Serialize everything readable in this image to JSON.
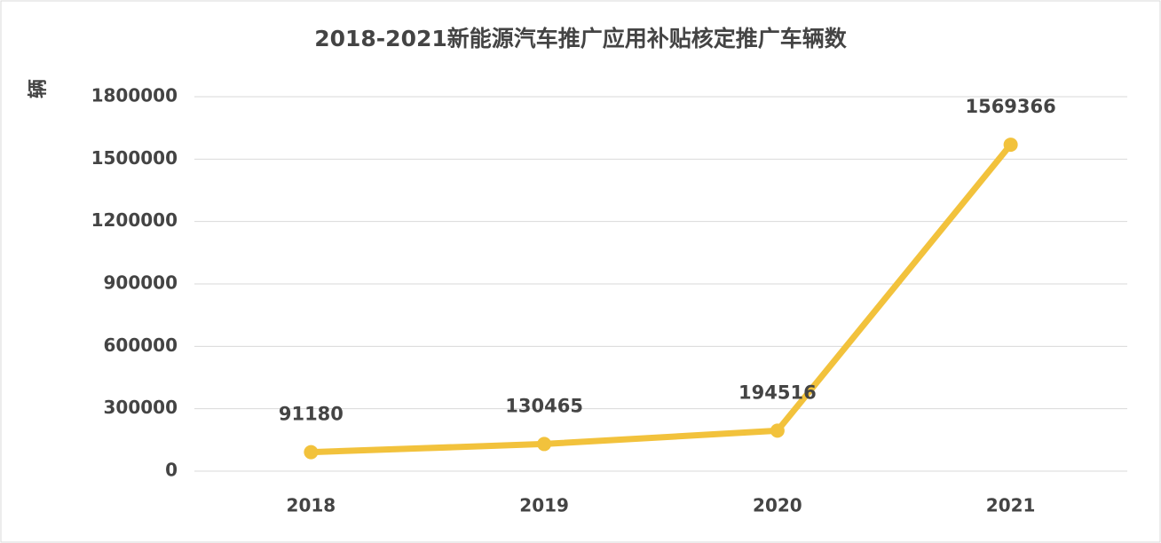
{
  "chart_data": {
    "type": "line",
    "title": "2018-2021新能源汽车推广应用补贴核定推广车辆数",
    "y_label": "辆",
    "categories": [
      "2018",
      "2019",
      "2020",
      "2021"
    ],
    "values": [
      91180,
      130465,
      194516,
      1569366
    ],
    "color": "#f2c23c",
    "ylim": [
      0,
      1800000
    ],
    "yticks": [
      0,
      300000,
      600000,
      900000,
      1200000,
      1500000,
      1800000
    ],
    "grid": true
  }
}
